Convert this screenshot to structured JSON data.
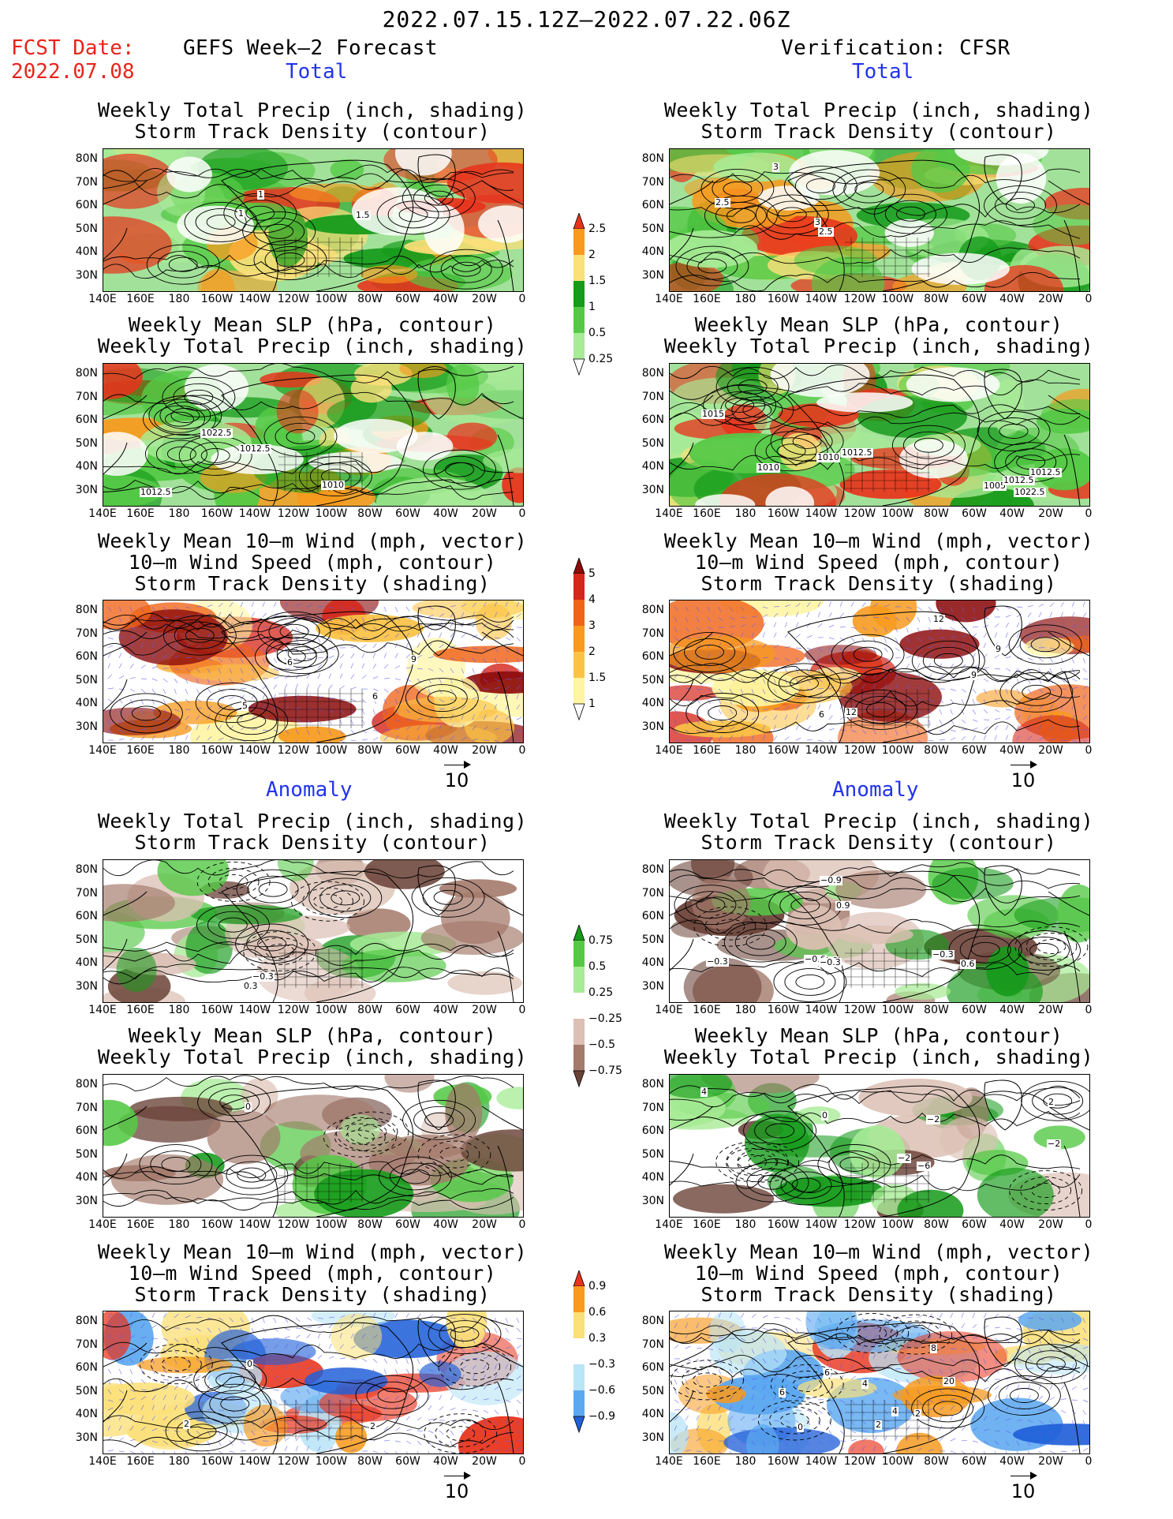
{
  "header": {
    "period": "2022.07.15.12Z–2022.07.22.06Z",
    "fcst_label": "FCST Date:",
    "fcst_date": "2022.07.08",
    "left_title": "GEFS Week–2 Forecast",
    "right_title": "Verification: CFSR",
    "total_label": "Total",
    "anomaly_label": "Anomaly"
  },
  "panel_titles": {
    "precip_storm": [
      "Weekly Total Precip (inch, shading)",
      "Storm Track Density (contour)"
    ],
    "slp_precip": [
      "Weekly Mean SLP (hPa, contour)",
      "Weekly Total Precip (inch, shading)"
    ],
    "wind_storm": [
      "Weekly Mean 10–m Wind (mph, vector)",
      "10–m Wind Speed (mph, contour)",
      "Storm Track Density (shading)"
    ]
  },
  "axes": {
    "lat_ticks": [
      "80N",
      "70N",
      "60N",
      "50N",
      "40N",
      "30N"
    ],
    "lon_ticks": [
      "140E",
      "160E",
      "180",
      "160W",
      "140W",
      "120W",
      "100W",
      "80W",
      "60W",
      "40W",
      "20W",
      "0"
    ]
  },
  "vector_reference": "10",
  "colorbars": {
    "total_precip": {
      "labels": [
        "2.5",
        "2",
        "1.5",
        "1",
        "0.5",
        "0.25"
      ],
      "colors": [
        "#e8331c",
        "#f79a1e",
        "#fbe07a",
        "#169b1b",
        "#55c946",
        "#a7eb96",
        "#ffffff"
      ]
    },
    "total_storm": {
      "labels": [
        "5",
        "4",
        "3",
        "2",
        "1.5",
        "1"
      ],
      "colors": [
        "#8b0a0a",
        "#d5261a",
        "#f0641a",
        "#f79a1e",
        "#fbc345",
        "#fff5a3",
        "#ffffff"
      ]
    },
    "anom_precip": {
      "labels": [
        "0.75",
        "0.5",
        "0.25",
        "−0.25",
        "−0.5",
        "−0.75"
      ],
      "colors": [
        "#169b1b",
        "#55c946",
        "#a7eb96",
        "#ffffff",
        "#dcc0b4",
        "#a47a6b",
        "#6b4338"
      ]
    },
    "anom_storm": {
      "labels": [
        "0.9",
        "0.6",
        "0.3",
        "−0.3",
        "−0.6",
        "−0.9"
      ],
      "colors": [
        "#e8331c",
        "#f79a1e",
        "#fbe07a",
        "#ffffff",
        "#b9e5f7",
        "#5ca8f0",
        "#1f5fd8"
      ]
    }
  },
  "contour_labels": {
    "fc_total_storm": [
      "1",
      "1.5",
      "1"
    ],
    "fc_total_slp": [
      "1012.5",
      "1010",
      "1012.5",
      "1022.5"
    ],
    "fc_total_wind": [
      "5",
      "6",
      "6",
      "9"
    ],
    "vf_total_storm": [
      "3",
      "2.5",
      "2.5",
      "3"
    ],
    "vf_total_slp": [
      "1010",
      "1012.5",
      "1015",
      "1005",
      "1010",
      "1012.5",
      "1022.5",
      "1012.5"
    ],
    "vf_total_wind": [
      "6",
      "9",
      "12",
      "12",
      "9"
    ],
    "fc_anom_storm": [
      "0.3",
      "−0.3"
    ],
    "fc_anom_slp": [
      "0"
    ],
    "fc_anom_wind": [
      "0",
      "2",
      "2"
    ],
    "vf_anom_storm": [
      "−0.9",
      "0.6",
      "−0.6",
      "−0.3",
      "0.9",
      "−0.3",
      "−0.6",
      "−0.3"
    ],
    "vf_anom_slp": [
      "0",
      "−2",
      "−2",
      "−6",
      "4",
      "−2",
      "2"
    ],
    "vf_anom_wind": [
      "6",
      "4",
      "8",
      "6",
      "2",
      "4",
      "20",
      "0",
      "2"
    ]
  }
}
